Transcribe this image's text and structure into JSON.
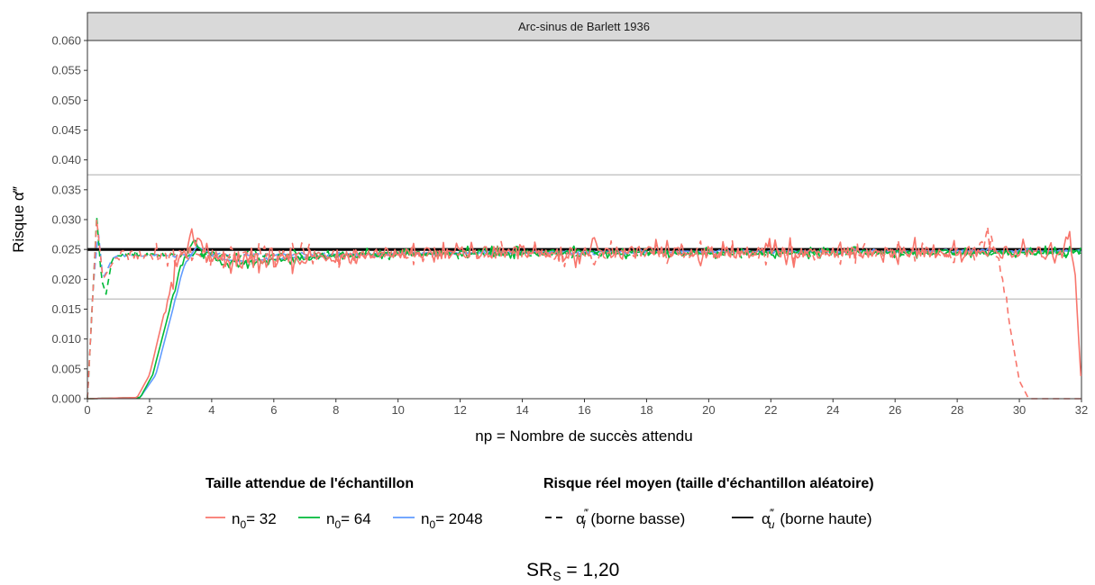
{
  "chart_data": {
    "type": "line",
    "panel_title": "Arc-sinus de Barlett 1936",
    "xlabel": "np = Nombre de succès attendu",
    "ylabel": "Risque α‴",
    "xlim": [
      0,
      32
    ],
    "ylim": [
      0,
      0.06
    ],
    "x_ticks": [
      0,
      2,
      4,
      6,
      8,
      10,
      12,
      14,
      16,
      18,
      20,
      22,
      24,
      26,
      28,
      30,
      32
    ],
    "y_ticks": [
      "0.000",
      "0.005",
      "0.010",
      "0.015",
      "0.020",
      "0.025",
      "0.030",
      "0.035",
      "0.040",
      "0.045",
      "0.050",
      "0.055",
      "0.060"
    ],
    "reference_lines": [
      {
        "y": 0.025,
        "style": "thick",
        "color": "#000000"
      },
      {
        "y": 0.0375,
        "style": "thin",
        "color": "#bdbdbd"
      },
      {
        "y": 0.0167,
        "style": "thin",
        "color": "#bdbdbd"
      }
    ],
    "legend_groups": [
      {
        "title": "Taille attendue de l'échantillon",
        "entries": [
          {
            "sub": "0",
            "label": "= 32",
            "color": "#F8766D"
          },
          {
            "sub": "0",
            "label": "= 64",
            "color": "#00BA38"
          },
          {
            "sub": "0",
            "label": "= 2048",
            "color": "#619CFF"
          }
        ]
      },
      {
        "title": "Risque réel moyen (taille d'échantillon aléatoire)",
        "entries": [
          {
            "sub": "l",
            "label": "(borne basse)",
            "linetype": "dashed"
          },
          {
            "sub": "u",
            "label": "(borne haute)",
            "linetype": "solid"
          }
        ]
      }
    ],
    "series": [
      {
        "name": "n0= 32",
        "color": "#F8766D",
        "upper_key": [
          [
            0,
            0
          ],
          [
            1.6,
            0.0002
          ],
          [
            2.0,
            0.004
          ],
          [
            2.5,
            0.015
          ],
          [
            3.0,
            0.024
          ],
          [
            3.3,
            0.0265
          ],
          [
            3.6,
            0.026
          ],
          [
            4.0,
            0.0235
          ],
          [
            4.4,
            0.0225
          ],
          [
            5.0,
            0.0228
          ],
          [
            6.0,
            0.023
          ],
          [
            8.0,
            0.024
          ],
          [
            12.0,
            0.0245
          ],
          [
            20.0,
            0.0245
          ],
          [
            31.3,
            0.0245
          ],
          [
            31.6,
            0.028
          ],
          [
            31.8,
            0.02
          ],
          [
            32,
            0.002
          ]
        ],
        "upper_noise": 0.0014,
        "lower_key": [
          [
            0,
            0
          ],
          [
            0.3,
            0.03
          ],
          [
            0.5,
            0.02
          ],
          [
            0.9,
            0.0235
          ],
          [
            1.2,
            0.024
          ],
          [
            28.6,
            0.0245
          ],
          [
            29.0,
            0.027
          ],
          [
            29.2,
            0.026
          ],
          [
            29.4,
            0.022
          ],
          [
            29.7,
            0.012
          ],
          [
            30.0,
            0.003
          ],
          [
            30.3,
            0
          ],
          [
            32,
            0
          ]
        ],
        "lower_noise": 0.0012
      },
      {
        "name": "n0= 64",
        "color": "#00BA38",
        "upper_key": [
          [
            0,
            0
          ],
          [
            1.7,
            0.0002
          ],
          [
            2.1,
            0.004
          ],
          [
            2.6,
            0.014
          ],
          [
            3.0,
            0.022
          ],
          [
            3.4,
            0.0265
          ],
          [
            3.8,
            0.0245
          ],
          [
            4.2,
            0.023
          ],
          [
            4.6,
            0.0225
          ],
          [
            5.5,
            0.023
          ],
          [
            8.0,
            0.024
          ],
          [
            12.0,
            0.0245
          ],
          [
            32,
            0.0245
          ]
        ],
        "upper_noise": 0.0006,
        "lower_key": [
          [
            0,
            0
          ],
          [
            0.15,
            0.015
          ],
          [
            0.3,
            0.0305
          ],
          [
            0.45,
            0.02
          ],
          [
            0.6,
            0.0175
          ],
          [
            0.8,
            0.0235
          ],
          [
            1.0,
            0.024
          ],
          [
            32,
            0.0245
          ]
        ],
        "lower_noise": 0.0005
      },
      {
        "name": "n0= 2048",
        "color": "#619CFF",
        "upper_key": [
          [
            0,
            0
          ],
          [
            1.7,
            0.0002
          ],
          [
            2.2,
            0.004
          ],
          [
            2.7,
            0.014
          ],
          [
            3.1,
            0.022
          ],
          [
            3.5,
            0.0255
          ],
          [
            3.9,
            0.0245
          ],
          [
            4.3,
            0.0235
          ],
          [
            5.0,
            0.023
          ],
          [
            8.0,
            0.024
          ],
          [
            12.0,
            0.0245
          ],
          [
            32,
            0.0248
          ]
        ],
        "upper_noise": 0.0002,
        "lower_key": [
          [
            0,
            0
          ],
          [
            0.2,
            0.02
          ],
          [
            0.35,
            0.028
          ],
          [
            0.5,
            0.02
          ],
          [
            0.8,
            0.0235
          ],
          [
            1.0,
            0.024
          ],
          [
            32,
            0.0248
          ]
        ],
        "lower_noise": 0.0002
      }
    ]
  },
  "caption": {
    "main": "SR",
    "sub": "S",
    "rest": " = 1,20"
  }
}
